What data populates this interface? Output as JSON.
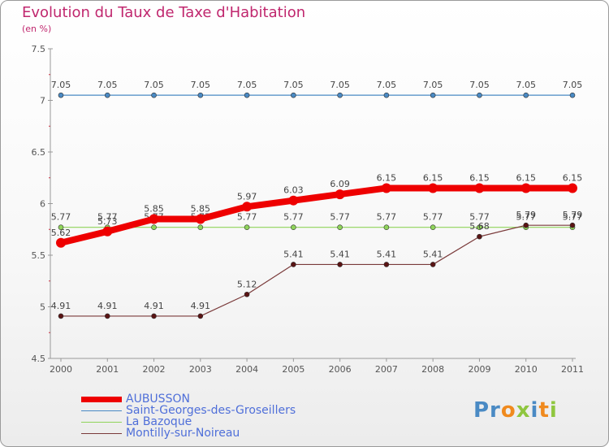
{
  "chart_data": {
    "type": "line",
    "title": "Evolution du Taux de Taxe d'Habitation",
    "subtitle": "(en %)",
    "xlabel": "",
    "ylabel": "",
    "ylim": [
      4.5,
      7.5
    ],
    "y_ticks": [
      "4.5",
      "5",
      "5.5",
      "6",
      "6.5",
      "7",
      "7.5"
    ],
    "categories": [
      "2000",
      "2001",
      "2002",
      "2003",
      "2004",
      "2005",
      "2006",
      "2007",
      "2008",
      "2009",
      "2010",
      "2011"
    ],
    "series": [
      {
        "name": "Saint-Georges-des-Groseillers",
        "color": "#4a8ac4",
        "marker_fill": "#4a8ac4",
        "values": [
          7.05,
          7.05,
          7.05,
          7.05,
          7.05,
          7.05,
          7.05,
          7.05,
          7.05,
          7.05,
          7.05,
          7.05
        ],
        "labels": [
          "7.05",
          "7.05",
          "7.05",
          "7.05",
          "7.05",
          "7.05",
          "7.05",
          "7.05",
          "7.05",
          "7.05",
          "7.05",
          "7.05"
        ]
      },
      {
        "name": "La Bazoque",
        "color": "#8fd45a",
        "marker_fill": "#8fd45a",
        "values": [
          5.77,
          5.77,
          5.77,
          5.77,
          5.77,
          5.77,
          5.77,
          5.77,
          5.77,
          5.77,
          5.77,
          5.77
        ],
        "labels": [
          "5.77",
          "5.77",
          "5.77",
          "5.77",
          "5.77",
          "5.77",
          "5.77",
          "5.77",
          "5.77",
          "5.77",
          "5.77",
          "5.77"
        ]
      },
      {
        "name": "Montilly-sur-Noireau",
        "color": "#7a3a3a",
        "marker_fill": "#5a1414",
        "values": [
          4.91,
          4.91,
          4.91,
          4.91,
          5.12,
          5.41,
          5.41,
          5.41,
          5.41,
          5.68,
          5.79,
          5.79
        ],
        "labels": [
          "4.91",
          "4.91",
          "4.91",
          "4.91",
          "5.12",
          "5.41",
          "5.41",
          "5.41",
          "5.41",
          "5.68",
          "5.79",
          "5.79"
        ]
      },
      {
        "name": "AUBUSSON",
        "color": "#ee0000",
        "marker_fill": "#ee0000",
        "values": [
          5.62,
          5.73,
          5.85,
          5.85,
          5.97,
          6.03,
          6.09,
          6.15,
          6.15,
          6.15,
          6.15,
          6.15
        ],
        "labels": [
          "5.62",
          "5.73",
          "5.85",
          "5.85",
          "5.97",
          "6.03",
          "6.09",
          "6.15",
          "6.15",
          "6.15",
          "6.15",
          "6.15"
        ]
      }
    ],
    "legend": [
      {
        "name": "AUBUSSON",
        "color": "#ee0000"
      },
      {
        "name": "Saint-Georges-des-Groseillers",
        "color": "#4a8ac4"
      },
      {
        "name": "La Bazoque",
        "color": "#8fd45a"
      },
      {
        "name": "Montilly-sur-Noireau",
        "color": "#7a3a3a"
      }
    ]
  },
  "brand": {
    "logo_text": "Proxiti"
  }
}
